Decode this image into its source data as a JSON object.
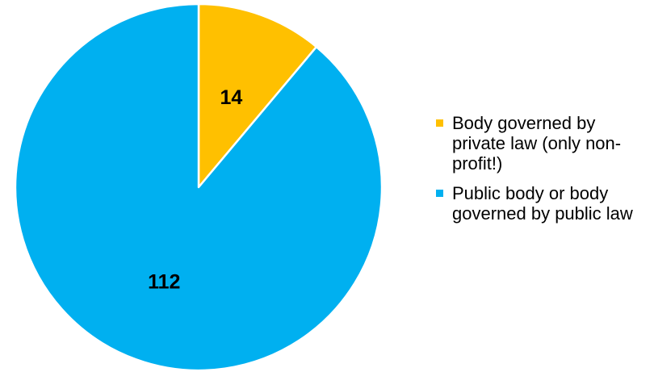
{
  "chart_data": {
    "type": "pie",
    "title": "",
    "slices": [
      {
        "label": "Body governed by private law (only non-profit!)",
        "value": 14,
        "color": "#FFC000"
      },
      {
        "label": "Public body or body governed by public law",
        "value": 112,
        "color": "#00B0F0"
      }
    ],
    "data_labels": [
      "14",
      "112"
    ],
    "start_angle": "12 o'clock",
    "direction": "clockwise",
    "slice_border_color": "#FFFFFF",
    "legend_position": "right"
  },
  "legend": {
    "items": [
      {
        "label": "Body governed by private law (only non-profit!)",
        "color": "#FFC000"
      },
      {
        "label": "Public body or body governed by public law",
        "color": "#00B0F0"
      }
    ]
  }
}
